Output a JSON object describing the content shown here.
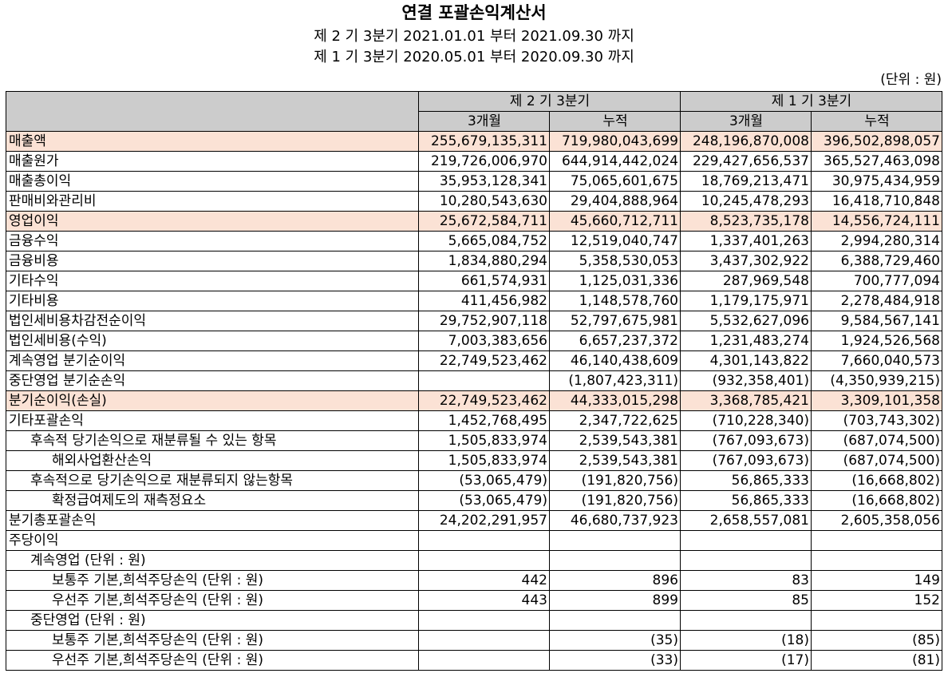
{
  "title": "연결 포괄손익계산서",
  "period_line1": "제 2 기 3분기 2021.01.01 부터 2021.09.30 까지",
  "period_line2": "제 1 기 3분기 2020.05.01 부터 2020.09.30 까지",
  "unit": "(단위 : 원)",
  "header": {
    "group1": "제 2 기 3분기",
    "group2": "제 1 기 3분기",
    "sub": [
      "3개월",
      "누적",
      "3개월",
      "누적"
    ]
  },
  "highlight_color": "#fbe2d5",
  "header_color": "#cccccc",
  "rows": [
    {
      "label": "매출액",
      "indent": 0,
      "highlight": true,
      "values": [
        "255,679,135,311",
        "719,980,043,699",
        "248,196,870,008",
        "396,502,898,057"
      ]
    },
    {
      "label": "매출원가",
      "indent": 0,
      "highlight": false,
      "values": [
        "219,726,006,970",
        "644,914,442,024",
        "229,427,656,537",
        "365,527,463,098"
      ]
    },
    {
      "label": "매출총이익",
      "indent": 0,
      "highlight": false,
      "values": [
        "35,953,128,341",
        "75,065,601,675",
        "18,769,213,471",
        "30,975,434,959"
      ]
    },
    {
      "label": "판매비와관리비",
      "indent": 0,
      "highlight": false,
      "values": [
        "10,280,543,630",
        "29,404,888,964",
        "10,245,478,293",
        "16,418,710,848"
      ]
    },
    {
      "label": "영업이익",
      "indent": 0,
      "highlight": true,
      "values": [
        "25,672,584,711",
        "45,660,712,711",
        "8,523,735,178",
        "14,556,724,111"
      ]
    },
    {
      "label": "금융수익",
      "indent": 0,
      "highlight": false,
      "values": [
        "5,665,084,752",
        "12,519,040,747",
        "1,337,401,263",
        "2,994,280,314"
      ]
    },
    {
      "label": "금융비용",
      "indent": 0,
      "highlight": false,
      "values": [
        "1,834,880,294",
        "5,358,530,053",
        "3,437,302,922",
        "6,388,729,460"
      ]
    },
    {
      "label": "기타수익",
      "indent": 0,
      "highlight": false,
      "values": [
        "661,574,931",
        "1,125,031,336",
        "287,969,548",
        "700,777,094"
      ]
    },
    {
      "label": "기타비용",
      "indent": 0,
      "highlight": false,
      "values": [
        "411,456,982",
        "1,148,578,760",
        "1,179,175,971",
        "2,278,484,918"
      ]
    },
    {
      "label": "법인세비용차감전순이익",
      "indent": 0,
      "highlight": false,
      "values": [
        "29,752,907,118",
        "52,797,675,981",
        "5,532,627,096",
        "9,584,567,141"
      ]
    },
    {
      "label": "법인세비용(수익)",
      "indent": 0,
      "highlight": false,
      "values": [
        "7,003,383,656",
        "6,657,237,372",
        "1,231,483,274",
        "1,924,526,568"
      ]
    },
    {
      "label": "계속영업 분기순이익",
      "indent": 0,
      "highlight": false,
      "values": [
        "22,749,523,462",
        "46,140,438,609",
        "4,301,143,822",
        "7,660,040,573"
      ]
    },
    {
      "label": "중단영업 분기순손익",
      "indent": 0,
      "highlight": false,
      "values": [
        "",
        "(1,807,423,311)",
        "(932,358,401)",
        "(4,350,939,215)"
      ]
    },
    {
      "label": "분기순이익(손실)",
      "indent": 0,
      "highlight": true,
      "values": [
        "22,749,523,462",
        "44,333,015,298",
        "3,368,785,421",
        "3,309,101,358"
      ]
    },
    {
      "label": "기타포괄손익",
      "indent": 0,
      "highlight": false,
      "values": [
        "1,452,768,495",
        "2,347,722,625",
        "(710,228,340)",
        "(703,743,302)"
      ]
    },
    {
      "label": "후속적 당기손익으로 재분류될 수 있는 항목",
      "indent": 1,
      "highlight": false,
      "values": [
        "1,505,833,974",
        "2,539,543,381",
        "(767,093,673)",
        "(687,074,500)"
      ]
    },
    {
      "label": "해외사업환산손익",
      "indent": 2,
      "highlight": false,
      "values": [
        "1,505,833,974",
        "2,539,543,381",
        "(767,093,673)",
        "(687,074,500)"
      ]
    },
    {
      "label": "후속적으로 당기손익으로 재분류되지 않는항목",
      "indent": 1,
      "highlight": false,
      "values": [
        "(53,065,479)",
        "(191,820,756)",
        "56,865,333",
        "(16,668,802)"
      ]
    },
    {
      "label": "확정급여제도의 재측정요소",
      "indent": 2,
      "highlight": false,
      "values": [
        "(53,065,479)",
        "(191,820,756)",
        "56,865,333",
        "(16,668,802)"
      ]
    },
    {
      "label": "분기총포괄손익",
      "indent": 0,
      "highlight": false,
      "values": [
        "24,202,291,957",
        "46,680,737,923",
        "2,658,557,081",
        "2,605,358,056"
      ]
    },
    {
      "label": "주당이익",
      "indent": 0,
      "highlight": false,
      "values": [
        "",
        "",
        "",
        ""
      ]
    },
    {
      "label": "계속영업 (단위 : 원)",
      "indent": 1,
      "highlight": false,
      "values": [
        "",
        "",
        "",
        ""
      ]
    },
    {
      "label": "보통주 기본,희석주당손익 (단위 : 원)",
      "indent": 2,
      "highlight": false,
      "values": [
        "442",
        "896",
        "83",
        "149"
      ]
    },
    {
      "label": "우선주 기본,희석주당손익 (단위 : 원)",
      "indent": 2,
      "highlight": false,
      "values": [
        "443",
        "899",
        "85",
        "152"
      ]
    },
    {
      "label": "중단영업 (단위 : 원)",
      "indent": 1,
      "highlight": false,
      "values": [
        "",
        "",
        "",
        ""
      ]
    },
    {
      "label": "보통주 기본,희석주당손익 (단위 : 원)",
      "indent": 2,
      "highlight": false,
      "values": [
        "",
        "(35)",
        "(18)",
        "(85)"
      ]
    },
    {
      "label": "우선주 기본,희석주당손익 (단위 : 원)",
      "indent": 2,
      "highlight": false,
      "values": [
        "",
        "(33)",
        "(17)",
        "(81)"
      ]
    }
  ]
}
